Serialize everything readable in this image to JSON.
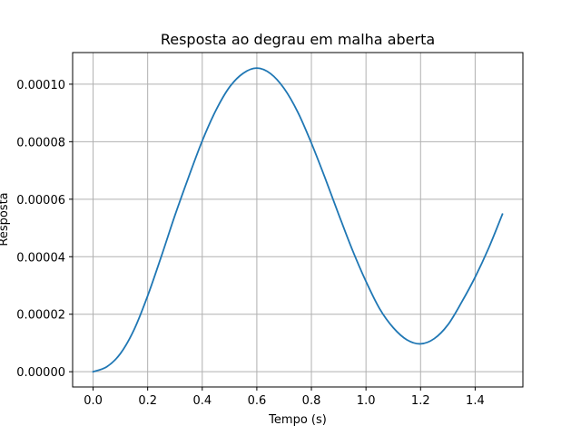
{
  "chart_data": {
    "type": "line",
    "title": "Resposta ao degrau em malha aberta",
    "xlabel": "Tempo (s)",
    "ylabel": "Resposta",
    "xlim": [
      -0.075,
      1.575
    ],
    "ylim": [
      -5.3e-06,
      0.000111
    ],
    "grid": true,
    "x_ticks": [
      0.0,
      0.2,
      0.4,
      0.6,
      0.8,
      1.0,
      1.2,
      1.4
    ],
    "x_tick_labels": [
      "0.0",
      "0.2",
      "0.4",
      "0.6",
      "0.8",
      "1.0",
      "1.2",
      "1.4"
    ],
    "y_ticks": [
      0,
      2e-05,
      4e-05,
      6e-05,
      8e-05,
      0.0001
    ],
    "y_tick_labels": [
      "0.00000",
      "0.00002",
      "0.00004",
      "0.00006",
      "0.00008",
      "0.00010"
    ],
    "series": [
      {
        "color": "#1f77b4",
        "x": [
          0.0,
          0.05,
          0.1,
          0.15,
          0.2,
          0.25,
          0.3,
          0.35,
          0.4,
          0.45,
          0.5,
          0.55,
          0.6,
          0.65,
          0.7,
          0.75,
          0.8,
          0.85,
          0.9,
          0.95,
          1.0,
          1.05,
          1.1,
          1.15,
          1.2,
          1.25,
          1.3,
          1.35,
          1.4,
          1.45,
          1.5
        ],
        "y": [
          0.0,
          1.7e-06,
          6.3e-06,
          1.46e-05,
          2.64e-05,
          4.01e-05,
          5.44e-05,
          6.77e-05,
          8.03e-05,
          9.09e-05,
          9.9e-05,
          0.0001038,
          0.0001056,
          0.0001037,
          9.85e-05,
          9.03e-05,
          7.95e-05,
          6.74e-05,
          5.47e-05,
          4.24e-05,
          3.14e-05,
          2.19e-05,
          1.53e-05,
          1.11e-05,
          9.7e-06,
          1.15e-05,
          1.63e-05,
          2.41e-05,
          3.29e-05,
          4.31e-05,
          5.48e-05
        ]
      }
    ]
  }
}
